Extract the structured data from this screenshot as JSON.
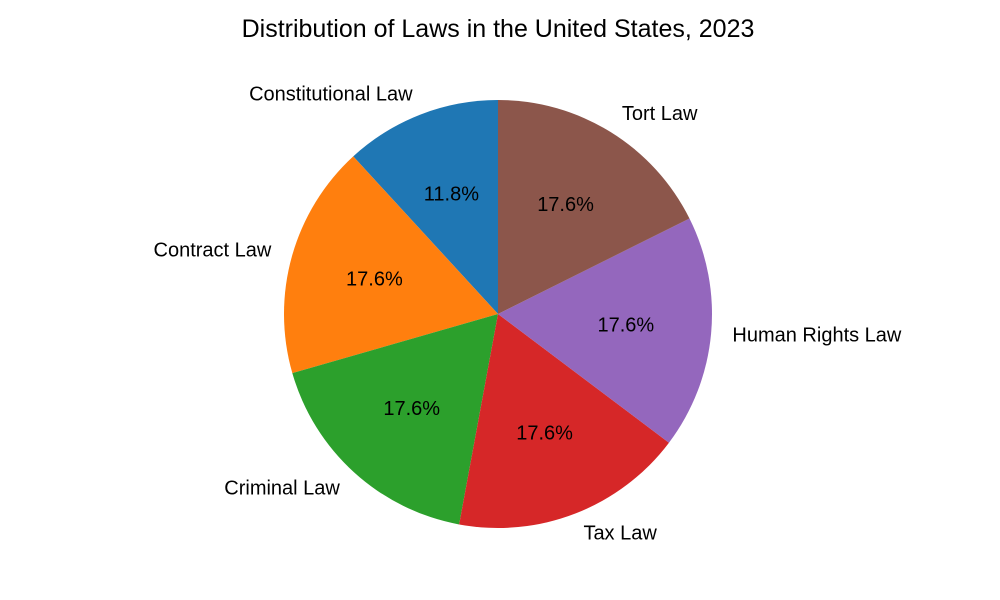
{
  "chart_data": {
    "type": "pie",
    "title": "Distribution of Laws in the United States, 2023",
    "categories": [
      "Constitutional Law",
      "Contract Law",
      "Criminal Law",
      "Tax Law",
      "Human Rights Law",
      "Tort Law"
    ],
    "values": [
      11.8,
      17.6,
      17.6,
      17.6,
      17.6,
      17.6
    ],
    "percent_labels": [
      "11.8%",
      "17.6%",
      "17.6%",
      "17.6%",
      "17.6%",
      "17.6%"
    ],
    "colors": [
      "#1f77b4",
      "#ff7f0e",
      "#2ca02c",
      "#d62728",
      "#9467bd",
      "#8c564b"
    ],
    "start_angle_deg": 90,
    "direction": "counterclockwise",
    "legend": "none"
  }
}
